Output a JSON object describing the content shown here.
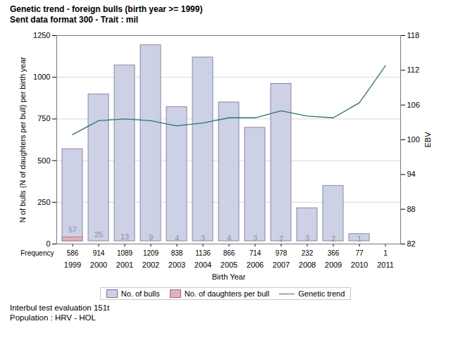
{
  "chart_data": {
    "type": "bar",
    "title": "Genetic trend - foreign bulls (birth year >= 1999)",
    "subtitle": "Sent data format 300 - Trait : mil",
    "caption": [
      "Interbul test evaluation 151t",
      "Population : HRV - HOL"
    ],
    "x_label": "Birth Year",
    "y_label": "N of bulls (N of daughters per bull) per birth year",
    "y2_label": "EBV",
    "categories": [
      "1999",
      "2000",
      "2001",
      "2002",
      "2003",
      "2004",
      "2005",
      "2006",
      "2007",
      "2008",
      "2009",
      "2010",
      "2011"
    ],
    "series": [
      {
        "name": "No. of bulls",
        "type": "bar",
        "color": "#cdd1e6",
        "values": [
          586,
          914,
          1089,
          1209,
          838,
          1136,
          866,
          714,
          978,
          232,
          366,
          77,
          1
        ]
      },
      {
        "name": "No. of daughters per bull",
        "type": "bar",
        "color": "#dcb4bc",
        "data_labels": true,
        "values": [
          57,
          25,
          13,
          9,
          4,
          3,
          4,
          3,
          2,
          3,
          2,
          1,
          null
        ]
      },
      {
        "name": "Genetic trend",
        "type": "line",
        "axis": "y2",
        "color": "#2c7472",
        "values": [
          100.9,
          103.3,
          103.6,
          103.3,
          102.4,
          102.9,
          103.8,
          103.8,
          105.0,
          104.1,
          103.8,
          106.4,
          112.8
        ]
      }
    ],
    "frequency_label": "Frequency",
    "ylim": [
      0,
      1250
    ],
    "yticks": [
      0,
      250,
      500,
      750,
      1000,
      1250
    ],
    "y2lim": [
      82,
      118
    ],
    "y2ticks": [
      82,
      88,
      94,
      100,
      106,
      112,
      118
    ],
    "grid": true,
    "legend": "bottom"
  }
}
